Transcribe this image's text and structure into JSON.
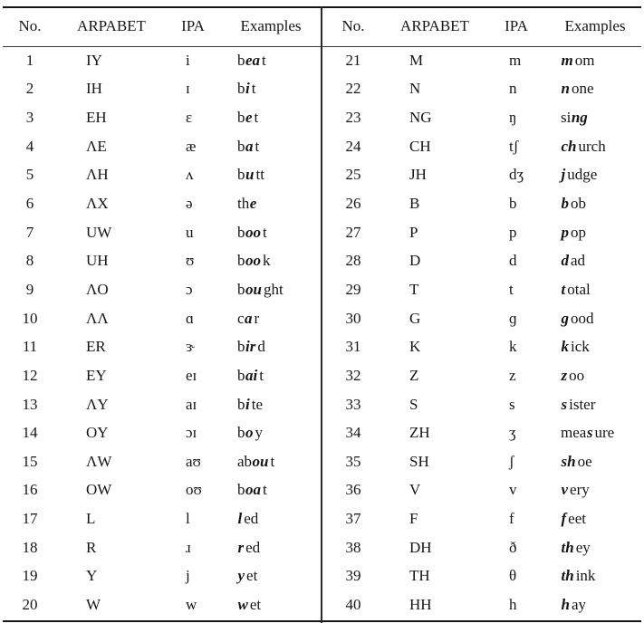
{
  "header": {
    "no": "No.",
    "arpabet": "ARPABET",
    "ipa": "IPA",
    "examples": "Examples"
  },
  "rows": [
    {
      "no": "1",
      "arpabet": "IY",
      "ipa": "i",
      "ex_pre": "b",
      "ex_bold": "ea",
      "ex_post": "t"
    },
    {
      "no": "2",
      "arpabet": "IH",
      "ipa": "ɪ",
      "ex_pre": "b",
      "ex_bold": "i",
      "ex_post": "t"
    },
    {
      "no": "3",
      "arpabet": "EH",
      "ipa": "ɛ",
      "ex_pre": "b",
      "ex_bold": "e",
      "ex_post": "t"
    },
    {
      "no": "4",
      "arpabet": "ΛE",
      "ipa": "æ",
      "ex_pre": "b",
      "ex_bold": "a",
      "ex_post": "t"
    },
    {
      "no": "5",
      "arpabet": "ΛH",
      "ipa": "ʌ",
      "ex_pre": "b",
      "ex_bold": "u",
      "ex_post": "tt"
    },
    {
      "no": "6",
      "arpabet": "ΛX",
      "ipa": "ə",
      "ex_pre": "th",
      "ex_bold": "e",
      "ex_post": ""
    },
    {
      "no": "7",
      "arpabet": "UW",
      "ipa": "u",
      "ex_pre": "b",
      "ex_bold": "oo",
      "ex_post": "t"
    },
    {
      "no": "8",
      "arpabet": "UH",
      "ipa": "ʊ",
      "ex_pre": "b",
      "ex_bold": "oo",
      "ex_post": "k"
    },
    {
      "no": "9",
      "arpabet": "ΛO",
      "ipa": "ɔ",
      "ex_pre": "b",
      "ex_bold": "ou",
      "ex_post": "ght"
    },
    {
      "no": "10",
      "arpabet": "ΛΛ",
      "ipa": "ɑ",
      "ex_pre": "c",
      "ex_bold": "a",
      "ex_post": "r"
    },
    {
      "no": "11",
      "arpabet": "ER",
      "ipa": "ɝ",
      "ex_pre": "b",
      "ex_bold": "ir",
      "ex_post": "d"
    },
    {
      "no": "12",
      "arpabet": "EY",
      "ipa": "eɪ",
      "ex_pre": "b",
      "ex_bold": "ai",
      "ex_post": "t"
    },
    {
      "no": "13",
      "arpabet": "ΛY",
      "ipa": "aɪ",
      "ex_pre": "b",
      "ex_bold": "i",
      "ex_post": "te"
    },
    {
      "no": "14",
      "arpabet": "OY",
      "ipa": "ɔɪ",
      "ex_pre": "b",
      "ex_bold": "o",
      "ex_post": "y"
    },
    {
      "no": "15",
      "arpabet": "ΛW",
      "ipa": "aʊ",
      "ex_pre": "ab",
      "ex_bold": "ou",
      "ex_post": "t"
    },
    {
      "no": "16",
      "arpabet": "OW",
      "ipa": "oʊ",
      "ex_pre": "b",
      "ex_bold": "oa",
      "ex_post": "t"
    },
    {
      "no": "17",
      "arpabet": "L",
      "ipa": "l",
      "ex_pre": "",
      "ex_bold": "l",
      "ex_post": "ed"
    },
    {
      "no": "18",
      "arpabet": "R",
      "ipa": "ɹ",
      "ex_pre": "",
      "ex_bold": "r",
      "ex_post": "ed"
    },
    {
      "no": "19",
      "arpabet": "Y",
      "ipa": "j",
      "ex_pre": "",
      "ex_bold": "y",
      "ex_post": "et"
    },
    {
      "no": "20",
      "arpabet": "W",
      "ipa": "w",
      "ex_pre": "",
      "ex_bold": "w",
      "ex_post": "et"
    },
    {
      "no": "21",
      "arpabet": "M",
      "ipa": "m",
      "ex_pre": "",
      "ex_bold": "m",
      "ex_post": "om"
    },
    {
      "no": "22",
      "arpabet": "N",
      "ipa": "n",
      "ex_pre": "",
      "ex_bold": "n",
      "ex_post": "one"
    },
    {
      "no": "23",
      "arpabet": "NG",
      "ipa": "ŋ",
      "ex_pre": "si",
      "ex_bold": "ng",
      "ex_post": ""
    },
    {
      "no": "24",
      "arpabet": "CH",
      "ipa": "tʃ",
      "ex_pre": "",
      "ex_bold": "ch",
      "ex_post": "urch"
    },
    {
      "no": "25",
      "arpabet": "JH",
      "ipa": "dʒ",
      "ex_pre": "",
      "ex_bold": "j",
      "ex_post": "udge"
    },
    {
      "no": "26",
      "arpabet": "B",
      "ipa": "b",
      "ex_pre": "",
      "ex_bold": "b",
      "ex_post": "ob"
    },
    {
      "no": "27",
      "arpabet": "P",
      "ipa": "p",
      "ex_pre": "",
      "ex_bold": "p",
      "ex_post": "op"
    },
    {
      "no": "28",
      "arpabet": "D",
      "ipa": "d",
      "ex_pre": "",
      "ex_bold": "d",
      "ex_post": "ad"
    },
    {
      "no": "29",
      "arpabet": "T",
      "ipa": "t",
      "ex_pre": "",
      "ex_bold": "t",
      "ex_post": "otal"
    },
    {
      "no": "30",
      "arpabet": "G",
      "ipa": "ɡ",
      "ex_pre": "",
      "ex_bold": "g",
      "ex_post": "ood"
    },
    {
      "no": "31",
      "arpabet": "K",
      "ipa": "k",
      "ex_pre": "",
      "ex_bold": "k",
      "ex_post": "ick"
    },
    {
      "no": "32",
      "arpabet": "Z",
      "ipa": "z",
      "ex_pre": "",
      "ex_bold": "z",
      "ex_post": "oo"
    },
    {
      "no": "33",
      "arpabet": "S",
      "ipa": "s",
      "ex_pre": "",
      "ex_bold": "s",
      "ex_post": "ister"
    },
    {
      "no": "34",
      "arpabet": "ZH",
      "ipa": "ʒ",
      "ex_pre": "mea",
      "ex_bold": "s",
      "ex_post": "ure"
    },
    {
      "no": "35",
      "arpabet": "SH",
      "ipa": "ʃ",
      "ex_pre": "",
      "ex_bold": "sh",
      "ex_post": "oe"
    },
    {
      "no": "36",
      "arpabet": "V",
      "ipa": "v",
      "ex_pre": "",
      "ex_bold": "v",
      "ex_post": "ery"
    },
    {
      "no": "37",
      "arpabet": "F",
      "ipa": "f",
      "ex_pre": "",
      "ex_bold": "f",
      "ex_post": "eet"
    },
    {
      "no": "38",
      "arpabet": "DH",
      "ipa": "ð",
      "ex_pre": "",
      "ex_bold": "th",
      "ex_post": "ey"
    },
    {
      "no": "39",
      "arpabet": "TH",
      "ipa": "θ",
      "ex_pre": "",
      "ex_bold": "th",
      "ex_post": "ink"
    },
    {
      "no": "40",
      "arpabet": "HH",
      "ipa": "h",
      "ex_pre": "",
      "ex_bold": "h",
      "ex_post": "ay"
    }
  ]
}
